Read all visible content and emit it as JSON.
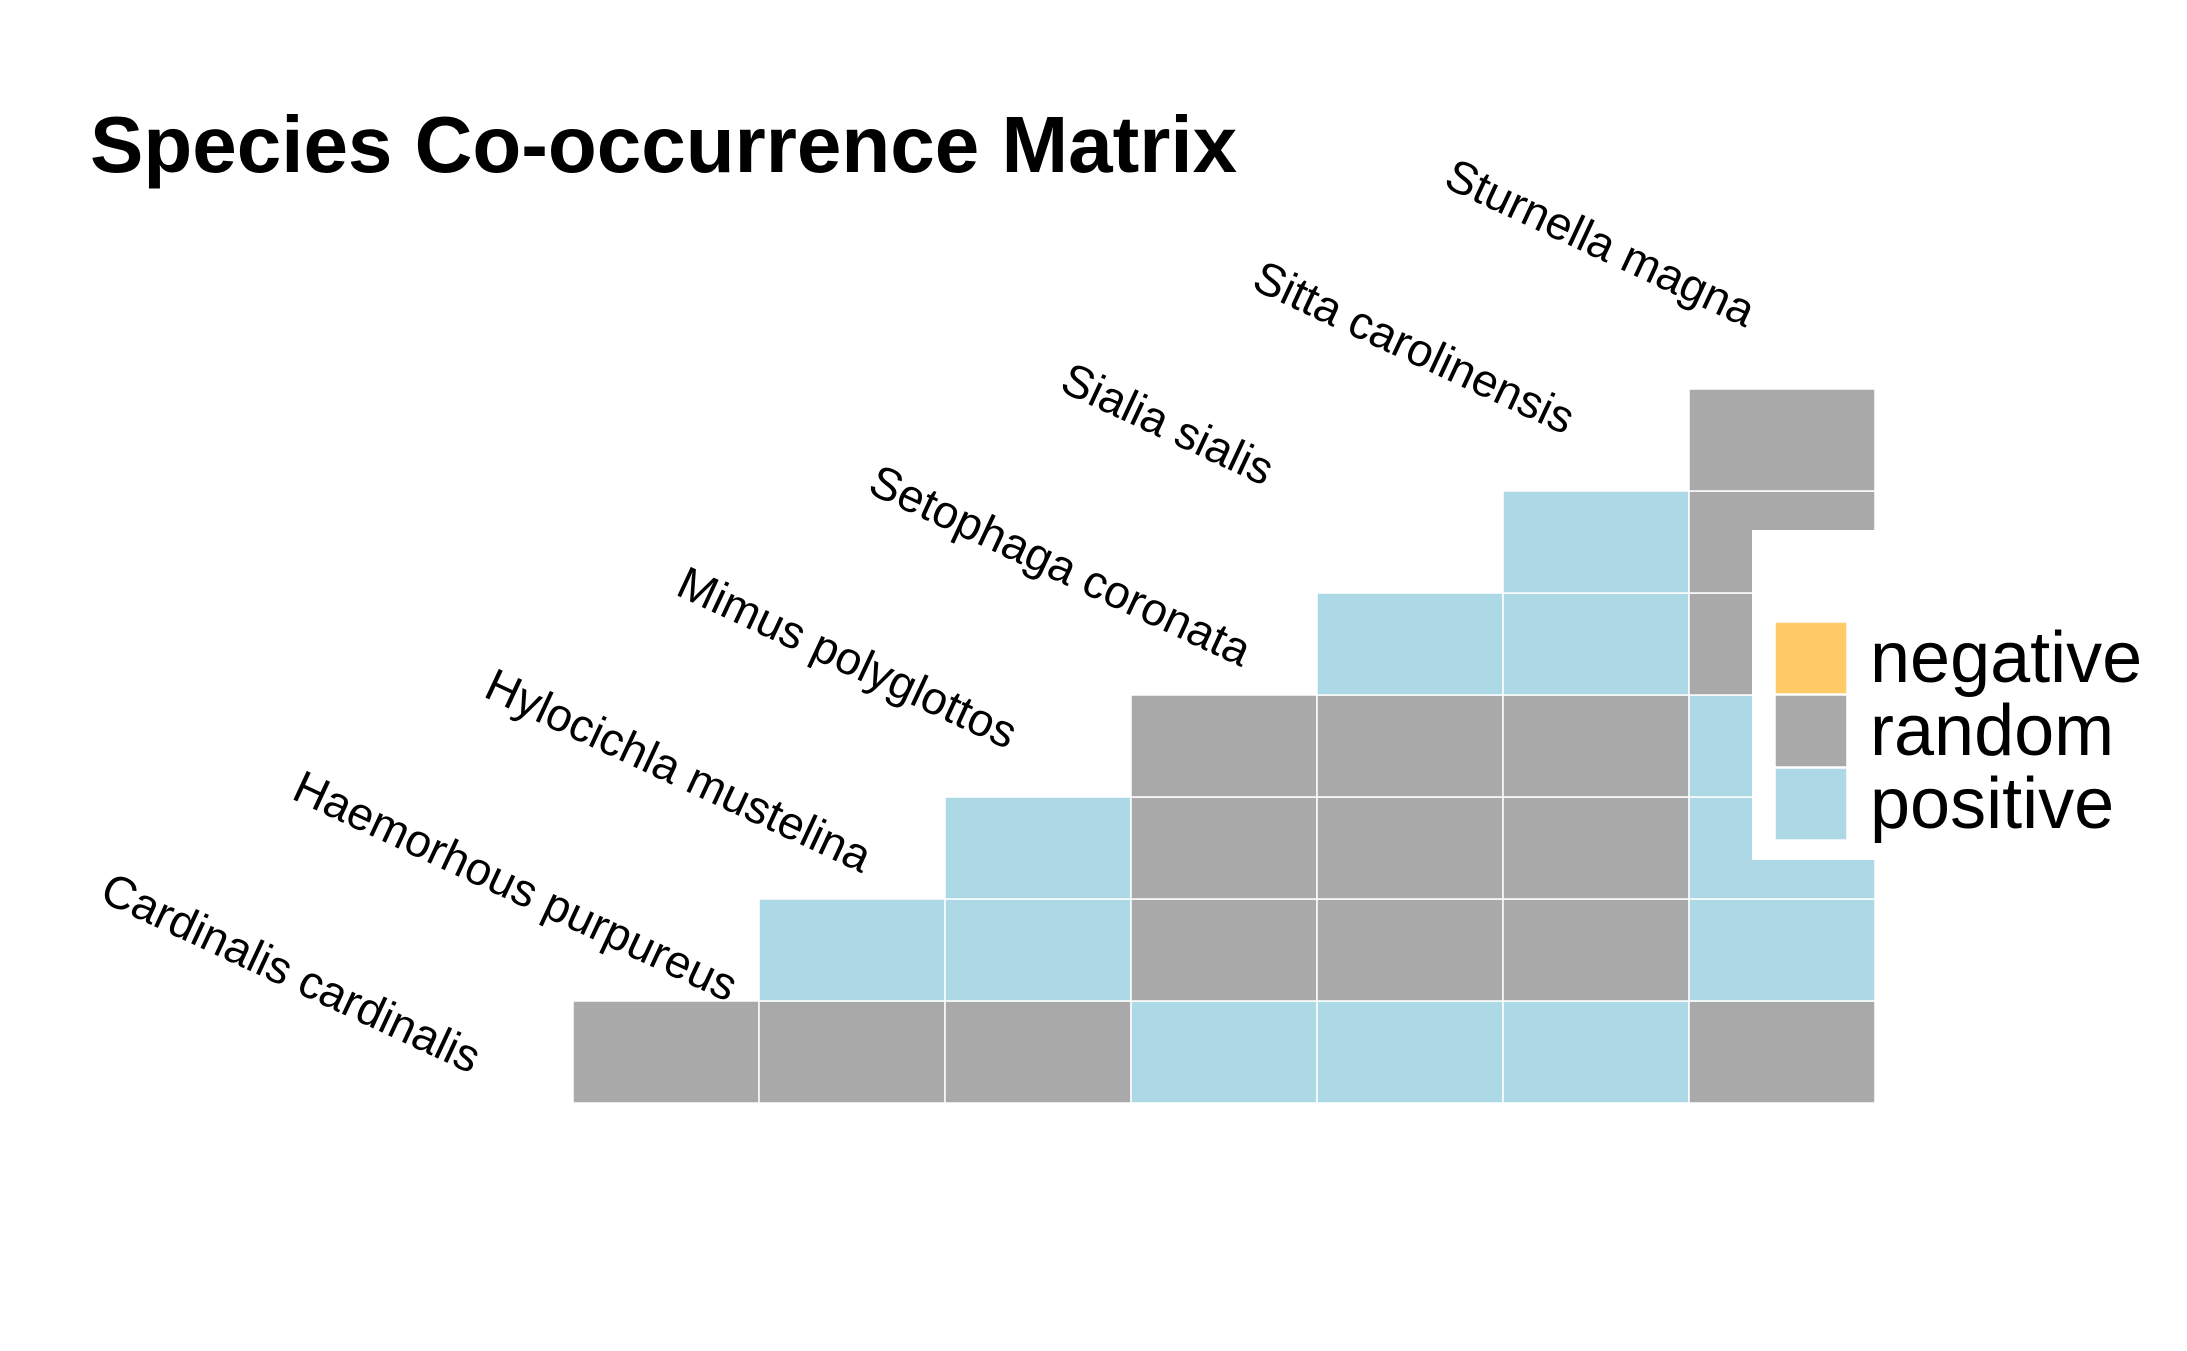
{
  "chart_data": {
    "type": "heatmap",
    "title": "Species Co-occurrence Matrix",
    "species": [
      "Cardinalis cardinalis",
      "Haemorhous purpureus",
      "Hylocichla mustelina",
      "Mimus polyglottos",
      "Setophaga coronata",
      "Sialia sialis",
      "Sitta carolinensis",
      "Sturnella magna"
    ],
    "rows": [
      [
        "random",
        "random",
        "random",
        "positive",
        "positive",
        "positive",
        "random"
      ],
      [
        "positive",
        "positive",
        "random",
        "random",
        "random",
        "positive"
      ],
      [
        "positive",
        "random",
        "random",
        "random",
        "positive"
      ],
      [
        "random",
        "random",
        "random",
        "positive"
      ],
      [
        "positive",
        "positive",
        "random"
      ],
      [
        "positive",
        "random"
      ],
      [
        "random"
      ]
    ],
    "legend": {
      "items": [
        {
          "key": "negative",
          "label": "negative",
          "color": "#FECB66"
        },
        {
          "key": "random",
          "label": "random",
          "color": "#A9A9A9"
        },
        {
          "key": "positive",
          "label": "positive",
          "color": "#ADD8E6"
        }
      ],
      "placement": "right"
    }
  }
}
